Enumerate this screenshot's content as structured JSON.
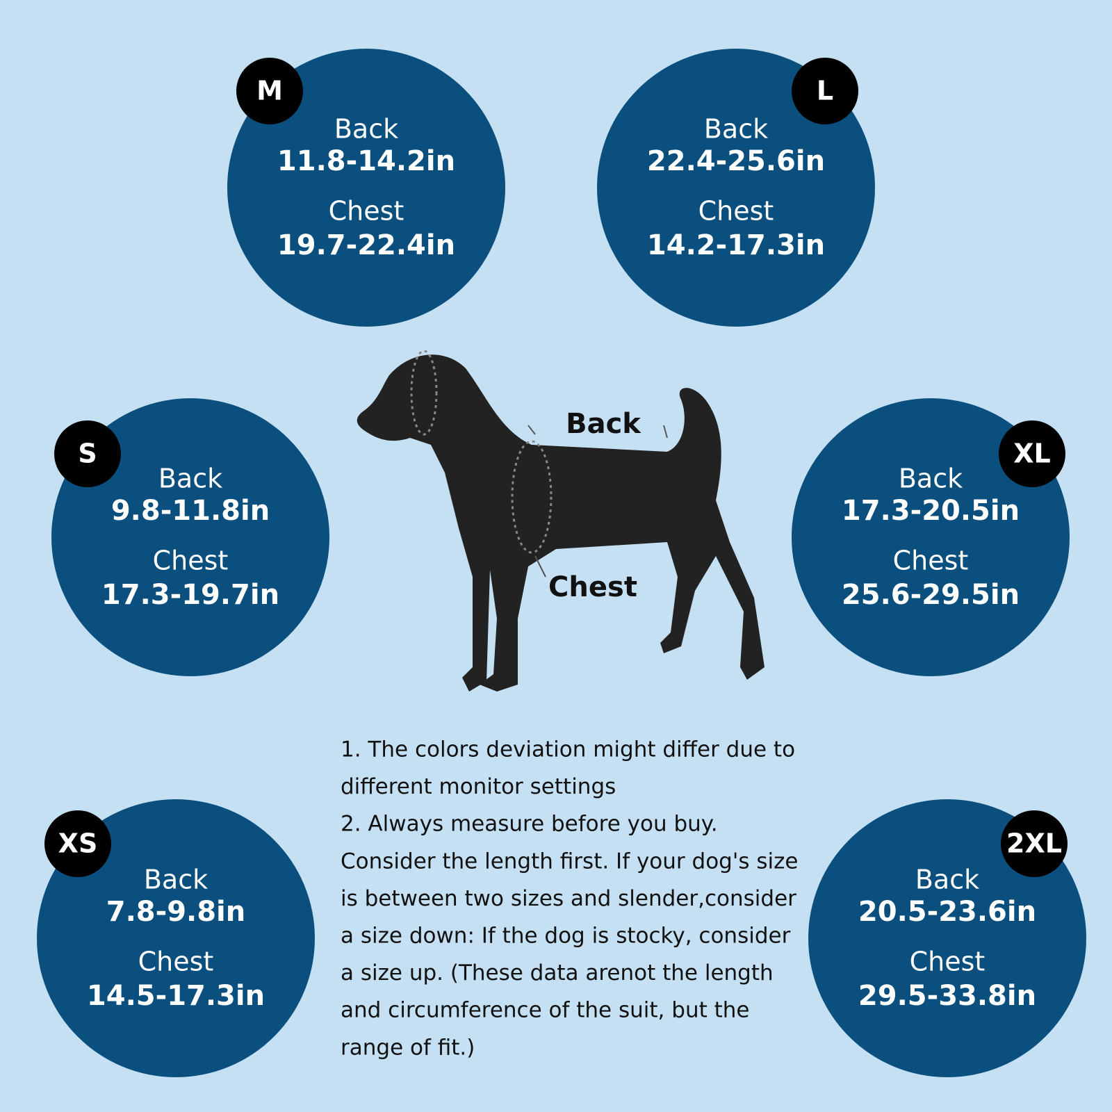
{
  "sizes": [
    {
      "label": "M",
      "back_label": "Back",
      "back": "11.8-14.2in",
      "chest_label": "Chest",
      "chest": "19.7-22.4in"
    },
    {
      "label": "L",
      "back_label": "Back",
      "back": "22.4-25.6in",
      "chest_label": "Chest",
      "chest": "14.2-17.3in"
    },
    {
      "label": "S",
      "back_label": "Back",
      "back": "9.8-11.8in",
      "chest_label": "Chest",
      "chest": "17.3-19.7in"
    },
    {
      "label": "XL",
      "back_label": "Back",
      "back": "17.3-20.5in",
      "chest_label": "Chest",
      "chest": "25.6-29.5in"
    },
    {
      "label": "XS",
      "back_label": "Back",
      "back": "7.8-9.8in",
      "chest_label": "Chest",
      "chest": "14.5-17.3in"
    },
    {
      "label": "2XL",
      "back_label": "Back",
      "back": "20.5-23.6in",
      "chest_label": "Chest",
      "chest": "29.5-33.8in"
    }
  ],
  "diagram": {
    "back_label": "Back",
    "chest_label": "Chest"
  },
  "notes": [
    "1. The colors deviation might differ due to",
    "different monitor settings",
    "2. Always measure before you buy.",
    "Consider the length first. If your dog's size",
    "is between two sizes and slender,consider",
    "a size down: If the dog is stocky, consider",
    "a size up. (These data arenot the length",
    "and circumference of the suit, but the",
    "range of fit.)"
  ]
}
